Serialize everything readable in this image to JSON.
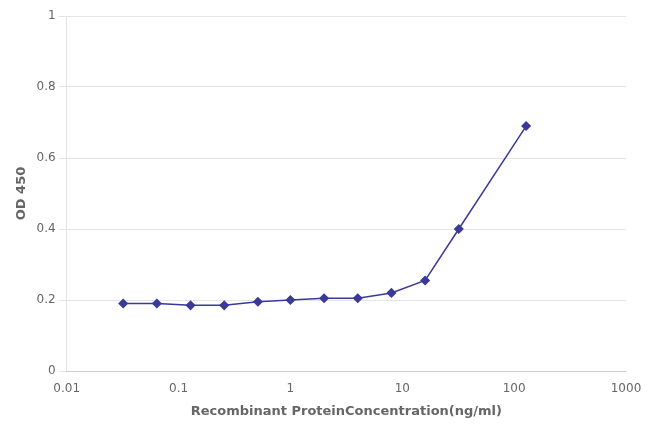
{
  "chart_data": {
    "type": "line",
    "x": [
      0.032,
      0.064,
      0.128,
      0.256,
      0.512,
      1.0,
      2.0,
      4.0,
      8.0,
      16.0,
      32.0,
      128.0
    ],
    "values": [
      0.19,
      0.19,
      0.185,
      0.185,
      0.195,
      0.2,
      0.205,
      0.205,
      0.22,
      0.255,
      0.4,
      0.69
    ],
    "color": "#3a3a9a",
    "marker": "diamond",
    "xlabel": "Recombinant ProteinConcentration(ng/ml)",
    "ylabel": "OD 450",
    "log": "x",
    "xlim": [
      0.01,
      1000
    ],
    "xticks": [
      0.01,
      0.1,
      1,
      10,
      100,
      1000
    ],
    "ylim": [
      0,
      1
    ],
    "yticks": [
      0,
      0.2,
      0.4,
      0.6,
      0.8,
      1
    ],
    "grid": "y"
  }
}
